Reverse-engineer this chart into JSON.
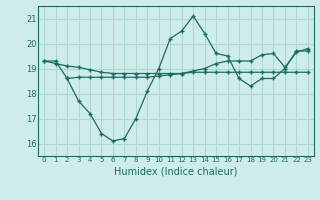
{
  "xlabel": "Humidex (Indice chaleur)",
  "bg_color": "#ceecea",
  "grid_color": "#aed8d5",
  "line_color": "#1a6b63",
  "xlim": [
    -0.5,
    23.5
  ],
  "ylim": [
    15.5,
    21.5
  ],
  "yticks": [
    16,
    17,
    18,
    19,
    20,
    21
  ],
  "xticks": [
    0,
    1,
    2,
    3,
    4,
    5,
    6,
    7,
    8,
    9,
    10,
    11,
    12,
    13,
    14,
    15,
    16,
    17,
    18,
    19,
    20,
    21,
    22,
    23
  ],
  "line1_x": [
    0,
    1,
    2,
    3,
    4,
    5,
    6,
    7,
    8,
    9,
    10,
    11,
    12,
    13,
    14,
    15,
    16,
    17,
    18,
    19,
    20,
    21,
    22,
    23
  ],
  "line1_y": [
    19.3,
    19.3,
    18.6,
    17.7,
    17.2,
    16.4,
    16.1,
    16.2,
    17.0,
    18.1,
    19.0,
    20.2,
    20.5,
    21.1,
    20.4,
    19.6,
    19.5,
    18.6,
    18.3,
    18.6,
    18.6,
    19.0,
    19.7,
    19.7
  ],
  "line2_x": [
    0,
    1,
    2,
    3,
    4,
    5,
    6,
    7,
    8,
    9,
    10,
    11,
    12,
    13,
    14,
    15,
    16,
    17,
    18,
    19,
    20,
    21,
    22,
    23
  ],
  "line2_y": [
    19.3,
    19.2,
    19.1,
    19.05,
    18.95,
    18.85,
    18.8,
    18.8,
    18.8,
    18.8,
    18.8,
    18.8,
    18.8,
    18.85,
    18.85,
    18.85,
    18.85,
    18.85,
    18.85,
    18.85,
    18.85,
    18.85,
    18.85,
    18.85
  ],
  "line3_x": [
    2,
    3,
    4,
    5,
    6,
    7,
    8,
    9,
    10,
    11,
    12,
    13,
    14,
    15,
    16,
    17,
    18,
    19,
    20,
    21,
    22,
    23
  ],
  "line3_y": [
    18.6,
    18.65,
    18.65,
    18.65,
    18.65,
    18.65,
    18.65,
    18.65,
    18.7,
    18.75,
    18.8,
    18.9,
    19.0,
    19.2,
    19.3,
    19.3,
    19.3,
    19.55,
    19.6,
    19.05,
    19.65,
    19.8
  ]
}
